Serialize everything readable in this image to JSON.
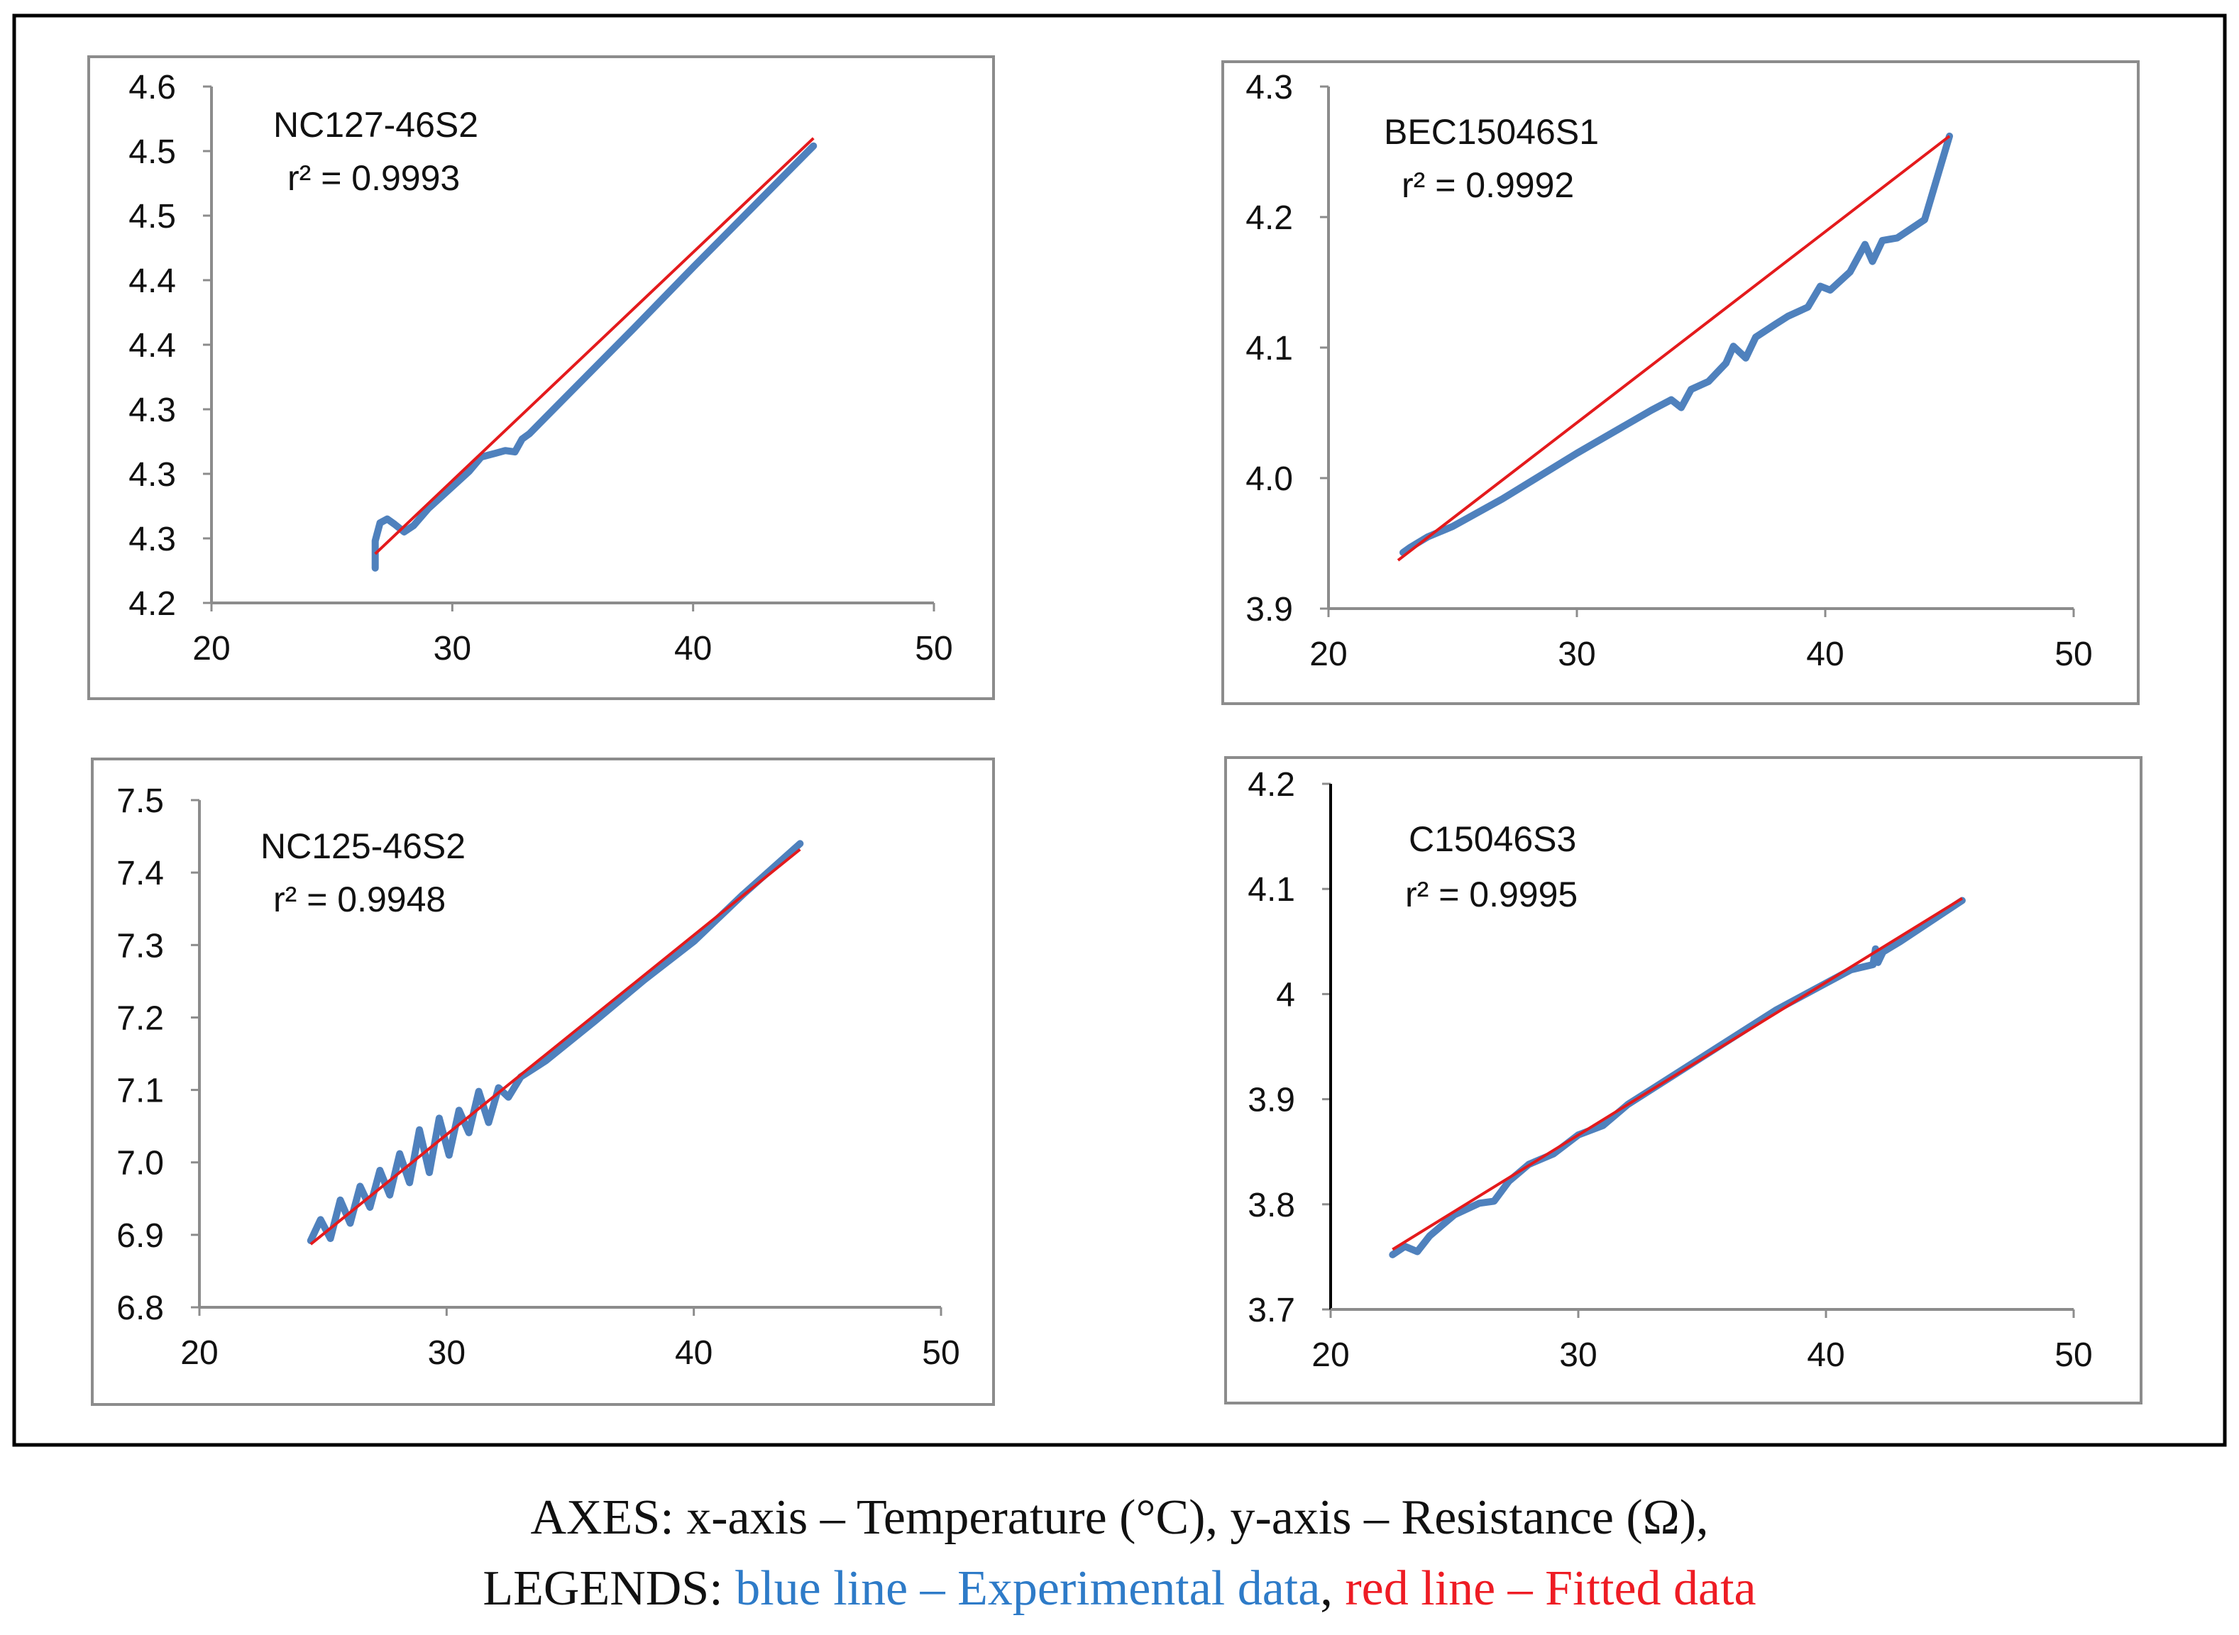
{
  "figure_caption": {
    "line1": "AXES: x-axis – Temperature (°C), y-axis – Resistance (Ω),",
    "legends_prefix": "LEGENDS: ",
    "blue_text": "blue line – Experimental data",
    "separator": ", ",
    "red_text": "red line – Fitted data"
  },
  "colors": {
    "experimental": "#4f81bd",
    "fitted": "#e41a1c",
    "caption_blue": "#2e7bc8",
    "caption_red": "#ee1c24",
    "axis": "#8c8c8c"
  },
  "chart_data": [
    {
      "type": "line",
      "title": "NC127-46S2",
      "r2_text": "r² = 0.9993",
      "xlabel": "Temperature (°C)",
      "ylabel": "Resistance (Ω)",
      "xlim": [
        20,
        50
      ],
      "ylim": [
        4.2,
        4.6
      ],
      "x_ticks": [
        20,
        30,
        40,
        50
      ],
      "y_tick_values": [
        4.2,
        4.25,
        4.3,
        4.35,
        4.4,
        4.45,
        4.5,
        4.55,
        4.6
      ],
      "y_tick_labels": [
        "4.2",
        "4.3",
        "4.3",
        "4.3",
        "4.4",
        "4.4",
        "4.5",
        "4.5",
        "4.6"
      ],
      "series": [
        {
          "name": "Experimental data",
          "x": [
            26.8,
            26.8,
            27.0,
            27.3,
            27.6,
            28.0,
            28.4,
            29.0,
            30.0,
            30.7,
            31.2,
            31.8,
            32.2,
            32.6,
            32.9,
            33.2,
            35.0,
            37.5,
            40.0,
            42.5,
            45.0
          ],
          "y": [
            4.227,
            4.248,
            4.262,
            4.265,
            4.261,
            4.255,
            4.26,
            4.273,
            4.29,
            4.302,
            4.313,
            4.316,
            4.318,
            4.317,
            4.327,
            4.331,
            4.365,
            4.412,
            4.46,
            4.507,
            4.554
          ]
        },
        {
          "name": "Fitted data",
          "x": [
            26.8,
            45.0
          ],
          "y": [
            4.238,
            4.56
          ]
        }
      ]
    },
    {
      "type": "line",
      "title": "BEC15046S1",
      "r2_text": "r² = 0.9992",
      "xlabel": "Temperature (°C)",
      "ylabel": "Resistance (Ω)",
      "xlim": [
        20,
        50
      ],
      "ylim": [
        3.9,
        4.3
      ],
      "x_ticks": [
        20,
        30,
        40,
        50
      ],
      "y_tick_values": [
        3.9,
        4.0,
        4.1,
        4.2,
        4.3
      ],
      "y_tick_labels": [
        "3.9",
        "4.0",
        "4.1",
        "4.2",
        "4.3"
      ],
      "series": [
        {
          "name": "Experimental data",
          "x": [
            23.0,
            23.3,
            24.0,
            25.0,
            27.0,
            30.0,
            33.0,
            33.8,
            34.2,
            34.6,
            35.3,
            36.0,
            36.3,
            36.8,
            37.2,
            38.0,
            38.5,
            39.3,
            39.8,
            40.2,
            41.0,
            41.6,
            41.9,
            42.3,
            42.9,
            44.0,
            45.0
          ],
          "y": [
            3.943,
            3.947,
            3.955,
            3.963,
            3.984,
            4.019,
            4.052,
            4.06,
            4.054,
            4.068,
            4.074,
            4.088,
            4.101,
            4.092,
            4.108,
            4.118,
            4.124,
            4.131,
            4.147,
            4.144,
            4.158,
            4.179,
            4.166,
            4.182,
            4.184,
            4.198,
            4.262
          ]
        },
        {
          "name": "Fitted data",
          "x": [
            22.8,
            45.0
          ],
          "y": [
            3.937,
            4.262
          ]
        }
      ]
    },
    {
      "type": "line",
      "title": "NC125-46S2",
      "r2_text": "r² = 0.9948",
      "xlabel": "Temperature (°C)",
      "ylabel": "Resistance (Ω)",
      "xlim": [
        20,
        50
      ],
      "ylim": [
        6.8,
        7.5
      ],
      "x_ticks": [
        20,
        30,
        40,
        50
      ],
      "y_tick_values": [
        6.8,
        6.9,
        7.0,
        7.1,
        7.2,
        7.3,
        7.4,
        7.5
      ],
      "y_tick_labels": [
        "6.8",
        "6.9",
        "7.0",
        "7.1",
        "7.2",
        "7.3",
        "7.4",
        "7.5"
      ],
      "series": [
        {
          "name": "Experimental data",
          "x": [
            24.5,
            24.9,
            25.3,
            25.7,
            26.1,
            26.5,
            26.9,
            27.3,
            27.7,
            28.1,
            28.5,
            28.9,
            29.3,
            29.7,
            30.1,
            30.5,
            30.9,
            31.3,
            31.7,
            32.1,
            32.5,
            33.0,
            34.0,
            36.0,
            38.0,
            40.0,
            42.0,
            44.3
          ],
          "y": [
            6.892,
            6.921,
            6.895,
            6.948,
            6.916,
            6.967,
            6.938,
            6.989,
            6.955,
            7.012,
            6.972,
            7.045,
            6.986,
            7.061,
            7.01,
            7.072,
            7.041,
            7.098,
            7.055,
            7.103,
            7.09,
            7.118,
            7.14,
            7.195,
            7.252,
            7.305,
            7.37,
            7.44
          ]
        },
        {
          "name": "Fitted data",
          "x": [
            24.5,
            44.3
          ],
          "y": [
            6.887,
            7.432
          ]
        }
      ]
    },
    {
      "type": "line",
      "title": "C15046S3",
      "r2_text": "r² = 0.9995",
      "xlabel": "Temperature (°C)",
      "ylabel": "Resistance (Ω)",
      "xlim": [
        20,
        50
      ],
      "ylim": [
        3.7,
        4.2
      ],
      "x_ticks": [
        20,
        30,
        40,
        50
      ],
      "y_tick_values": [
        3.7,
        3.8,
        3.9,
        4.0,
        4.1,
        4.2
      ],
      "y_tick_labels": [
        "3.7",
        "3.8",
        "3.9",
        "4",
        "4.1",
        "4.2"
      ],
      "series": [
        {
          "name": "Experimental data",
          "x": [
            22.5,
            23.0,
            23.5,
            24.0,
            25.0,
            26.0,
            26.6,
            27.2,
            28.0,
            29.0,
            30.0,
            31.0,
            32.0,
            33.0,
            35.0,
            38.0,
            41.0,
            41.9,
            42.0,
            42.1,
            42.3,
            43.0,
            45.5
          ],
          "y": [
            3.752,
            3.76,
            3.755,
            3.77,
            3.79,
            3.801,
            3.803,
            3.822,
            3.838,
            3.848,
            3.866,
            3.875,
            3.895,
            3.91,
            3.94,
            3.985,
            4.023,
            4.028,
            4.043,
            4.03,
            4.04,
            4.05,
            4.089
          ]
        },
        {
          "name": "Fitted data",
          "x": [
            22.5,
            45.5
          ],
          "y": [
            3.757,
            4.091
          ]
        }
      ]
    }
  ]
}
